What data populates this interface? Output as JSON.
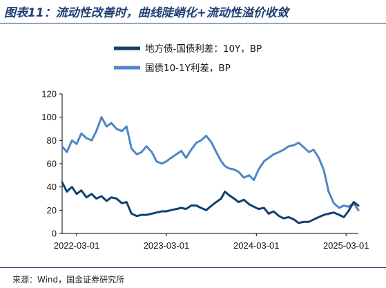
{
  "header": {
    "title": "图表11：流动性改善时，曲线陡峭化+流动性溢价收敛"
  },
  "footer": {
    "source": "来源：Wind，国金证券研究所"
  },
  "chart_data": {
    "type": "line",
    "title": "图表11：流动性改善时，曲线陡峭化+流动性溢价收敛",
    "xlabel": "",
    "ylabel": "",
    "x_range": [
      "2022-01-01",
      "2025-04-20"
    ],
    "ylim": [
      0,
      120
    ],
    "y_ticks": [
      0,
      20,
      40,
      60,
      80,
      100,
      120
    ],
    "x_ticks": [
      "2022-03-01",
      "2023-03-01",
      "2024-03-01",
      "2025-03-01"
    ],
    "grid": false,
    "legend_position": "top",
    "series": [
      {
        "name": "地方债-国债利差：10Y，BP",
        "color": "#12406b",
        "x": [
          "2022-01-01",
          "2022-01-20",
          "2022-02-10",
          "2022-03-01",
          "2022-03-20",
          "2022-04-10",
          "2022-05-01",
          "2022-05-20",
          "2022-06-10",
          "2022-07-01",
          "2022-07-20",
          "2022-08-10",
          "2022-09-01",
          "2022-09-20",
          "2022-10-10",
          "2022-11-01",
          "2022-11-20",
          "2022-12-10",
          "2023-01-01",
          "2023-01-20",
          "2023-02-10",
          "2023-03-01",
          "2023-03-20",
          "2023-04-10",
          "2023-05-01",
          "2023-05-20",
          "2023-06-10",
          "2023-07-01",
          "2023-07-20",
          "2023-08-10",
          "2023-09-01",
          "2023-09-20",
          "2023-10-10",
          "2023-10-25",
          "2023-11-10",
          "2023-12-01",
          "2023-12-20",
          "2024-01-10",
          "2024-02-01",
          "2024-02-20",
          "2024-03-10",
          "2024-04-01",
          "2024-04-20",
          "2024-05-10",
          "2024-06-01",
          "2024-06-20",
          "2024-07-10",
          "2024-08-01",
          "2024-08-20",
          "2024-09-10",
          "2024-10-01",
          "2024-10-20",
          "2024-11-10",
          "2024-12-01",
          "2024-12-20",
          "2025-01-10",
          "2025-02-01",
          "2025-02-20",
          "2025-03-10",
          "2025-04-01",
          "2025-04-20"
        ],
        "values": [
          44,
          36,
          40,
          34,
          37,
          31,
          34,
          30,
          32,
          28,
          31,
          30,
          26,
          27,
          17,
          15,
          16,
          16,
          17,
          18,
          19,
          19,
          20,
          21,
          22,
          21,
          24,
          24,
          22,
          20,
          24,
          27,
          30,
          36,
          33,
          30,
          27,
          29,
          25,
          23,
          21,
          22,
          17,
          19,
          15,
          13,
          14,
          12,
          9,
          10,
          10,
          12,
          14,
          16,
          17,
          18,
          16,
          14,
          19,
          27,
          24
        ]
      },
      {
        "name": "国债10-1Y利差，BP",
        "color": "#4e86c8",
        "x": [
          "2022-01-01",
          "2022-01-20",
          "2022-02-10",
          "2022-03-01",
          "2022-03-20",
          "2022-04-10",
          "2022-05-01",
          "2022-05-20",
          "2022-06-10",
          "2022-07-01",
          "2022-07-20",
          "2022-08-10",
          "2022-09-01",
          "2022-09-20",
          "2022-10-10",
          "2022-11-01",
          "2022-11-20",
          "2022-12-10",
          "2023-01-01",
          "2023-01-20",
          "2023-02-10",
          "2023-03-01",
          "2023-03-20",
          "2023-04-10",
          "2023-05-01",
          "2023-05-20",
          "2023-06-10",
          "2023-07-01",
          "2023-07-20",
          "2023-08-10",
          "2023-09-01",
          "2023-09-20",
          "2023-10-10",
          "2023-10-25",
          "2023-11-10",
          "2023-12-01",
          "2023-12-20",
          "2024-01-10",
          "2024-02-01",
          "2024-02-20",
          "2024-03-10",
          "2024-04-01",
          "2024-04-20",
          "2024-05-10",
          "2024-06-01",
          "2024-06-20",
          "2024-07-10",
          "2024-08-01",
          "2024-08-20",
          "2024-09-10",
          "2024-10-01",
          "2024-10-20",
          "2024-11-10",
          "2024-12-01",
          "2024-12-20",
          "2025-01-10",
          "2025-02-01",
          "2025-02-20",
          "2025-03-10",
          "2025-04-01",
          "2025-04-20"
        ],
        "values": [
          75,
          70,
          80,
          77,
          86,
          82,
          80,
          88,
          100,
          92,
          95,
          90,
          88,
          92,
          73,
          68,
          70,
          75,
          70,
          62,
          60,
          62,
          65,
          68,
          71,
          65,
          72,
          78,
          80,
          84,
          78,
          70,
          62,
          58,
          56,
          55,
          53,
          48,
          50,
          46,
          55,
          62,
          65,
          68,
          70,
          72,
          75,
          76,
          78,
          74,
          70,
          72,
          65,
          54,
          36,
          26,
          22,
          24,
          23,
          26,
          20
        ]
      }
    ]
  }
}
